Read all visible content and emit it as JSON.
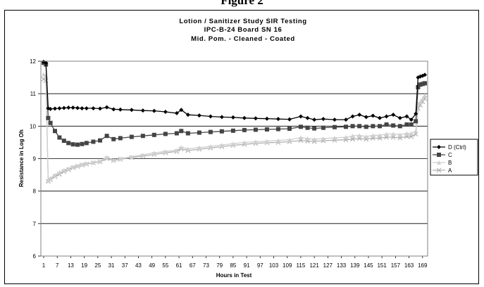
{
  "page_heading_fragment": "Figure 2",
  "chart_data": {
    "type": "line",
    "title": "Lotion / Sanitizer Study SIR Testing",
    "subtitle_lines": [
      "IPC-B-24 Board SN 16",
      "Mid. Pom. - Cleaned - Coated"
    ],
    "xlabel": "Hours in Test",
    "ylabel": "Resistance in Log Oh",
    "xlim": [
      1,
      170
    ],
    "ylim": [
      6,
      12
    ],
    "yticks": [
      6,
      7,
      8,
      9,
      10,
      11,
      12
    ],
    "xtick_labels": [
      "1",
      "7",
      "13",
      "19",
      "25",
      "31",
      "37",
      "43",
      "49",
      "55",
      "61",
      "67",
      "73",
      "79",
      "85",
      "91",
      "97",
      "103",
      "109",
      "115",
      "121",
      "127",
      "133",
      "139",
      "145",
      "151",
      "157",
      "163",
      "169"
    ],
    "grid": "horizontal",
    "legend": "right",
    "x": [
      1,
      2,
      3,
      4,
      6,
      8,
      10,
      12,
      14,
      16,
      18,
      20,
      23,
      26,
      29,
      32,
      35,
      40,
      45,
      50,
      55,
      60,
      62,
      65,
      70,
      75,
      80,
      85,
      90,
      95,
      100,
      105,
      110,
      115,
      118,
      121,
      125,
      130,
      135,
      138,
      141,
      144,
      147,
      150,
      153,
      156,
      159,
      162,
      164,
      166,
      167,
      168,
      169,
      170
    ],
    "series": [
      {
        "name": "D (Ctrl)",
        "color": "#000000",
        "marker": "diamond",
        "values": [
          11.98,
          11.95,
          10.55,
          10.53,
          10.54,
          10.55,
          10.56,
          10.57,
          10.57,
          10.56,
          10.55,
          10.55,
          10.55,
          10.54,
          10.58,
          10.52,
          10.51,
          10.5,
          10.48,
          10.47,
          10.44,
          10.4,
          10.5,
          10.35,
          10.33,
          10.3,
          10.28,
          10.27,
          10.25,
          10.24,
          10.23,
          10.22,
          10.21,
          10.3,
          10.25,
          10.2,
          10.22,
          10.2,
          10.2,
          10.3,
          10.35,
          10.28,
          10.32,
          10.25,
          10.3,
          10.35,
          10.25,
          10.3,
          10.2,
          10.38,
          11.5,
          11.53,
          11.55,
          11.58
        ]
      },
      {
        "name": "C",
        "color": "#444444",
        "marker": "square",
        "values": [
          11.95,
          11.9,
          10.25,
          10.1,
          9.85,
          9.65,
          9.55,
          9.48,
          9.44,
          9.43,
          9.45,
          9.48,
          9.52,
          9.56,
          9.7,
          9.6,
          9.63,
          9.67,
          9.7,
          9.73,
          9.76,
          9.78,
          9.85,
          9.78,
          9.8,
          9.82,
          9.84,
          9.86,
          9.88,
          9.89,
          9.9,
          9.91,
          9.92,
          9.98,
          9.95,
          9.93,
          9.95,
          9.97,
          9.98,
          10.0,
          10.0,
          9.98,
          10.0,
          10.0,
          10.05,
          10.02,
          10.0,
          10.05,
          10.05,
          10.15,
          11.2,
          11.28,
          11.3,
          11.32
        ]
      },
      {
        "name": "B",
        "color": "#cfcfcf",
        "marker": "triangle",
        "values": [
          11.6,
          11.55,
          8.35,
          8.4,
          8.5,
          8.58,
          8.65,
          8.7,
          8.75,
          8.78,
          8.82,
          8.85,
          8.88,
          8.92,
          9.05,
          8.96,
          9.0,
          9.06,
          9.12,
          9.18,
          9.22,
          9.26,
          9.35,
          9.3,
          9.34,
          9.38,
          9.42,
          9.46,
          9.5,
          9.52,
          9.54,
          9.56,
          9.58,
          9.65,
          9.62,
          9.6,
          9.62,
          9.64,
          9.66,
          9.7,
          9.72,
          9.68,
          9.72,
          9.72,
          9.76,
          9.76,
          9.74,
          9.78,
          9.78,
          9.85,
          10.7,
          10.75,
          10.85,
          10.95
        ]
      },
      {
        "name": "A",
        "color": "#b0b0b0",
        "marker": "x",
        "values": [
          11.45,
          11.4,
          8.3,
          8.35,
          8.45,
          8.52,
          8.6,
          8.66,
          8.72,
          8.76,
          8.8,
          8.83,
          8.87,
          8.9,
          9.0,
          8.94,
          8.98,
          9.03,
          9.08,
          9.13,
          9.18,
          9.22,
          9.3,
          9.25,
          9.29,
          9.33,
          9.37,
          9.41,
          9.44,
          9.47,
          9.49,
          9.5,
          9.52,
          9.56,
          9.54,
          9.53,
          9.55,
          9.57,
          9.58,
          9.6,
          9.62,
          9.6,
          9.63,
          9.63,
          9.66,
          9.66,
          9.64,
          9.68,
          9.68,
          9.75,
          10.55,
          10.65,
          10.75,
          10.85
        ]
      }
    ]
  }
}
